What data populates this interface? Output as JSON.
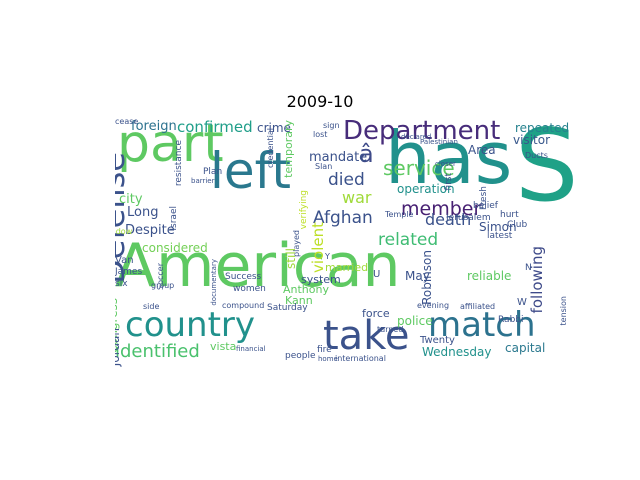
{
  "title": "2009-10",
  "words": [
    {
      "t": "American",
      "c": "#5ec962"
    },
    {
      "t": "part",
      "c": "#5ec962"
    },
    {
      "t": "has",
      "c": "#21918c"
    },
    {
      "t": "S",
      "c": "#1fa187"
    },
    {
      "t": "left",
      "c": "#2a788e"
    },
    {
      "t": "take",
      "c": "#3b528b"
    },
    {
      "t": "match",
      "c": "#2c728e"
    },
    {
      "t": "country",
      "c": "#21918c"
    },
    {
      "t": "Department",
      "c": "#472c7a"
    },
    {
      "t": "Defense",
      "c": "#3b528b"
    },
    {
      "t": "identified",
      "c": "#4ac16d"
    },
    {
      "t": "service",
      "c": "#5ec962"
    },
    {
      "t": "â",
      "c": "#3e4a89"
    },
    {
      "t": "Afghan",
      "c": "#3b528b"
    },
    {
      "t": "died",
      "c": "#3b528b"
    },
    {
      "t": "related",
      "c": "#3fbc73"
    },
    {
      "t": "member",
      "c": "#482173"
    },
    {
      "t": "confirmed",
      "c": "#1f9e89"
    },
    {
      "t": "war",
      "c": "#a0da39"
    },
    {
      "t": "crime",
      "c": "#3b528b"
    },
    {
      "t": "foreign",
      "c": "#2c728e"
    },
    {
      "t": "temporary",
      "c": "#5ec962"
    },
    {
      "t": "death",
      "c": "#3b528b"
    },
    {
      "t": "operation",
      "c": "#21918c"
    },
    {
      "t": "visitor",
      "c": "#38588c"
    },
    {
      "t": "repeated",
      "c": "#26828e"
    },
    {
      "t": "Area",
      "c": "#3b528b"
    },
    {
      "t": "following",
      "c": "#3e4a89"
    },
    {
      "t": "Long",
      "c": "#3b528b"
    },
    {
      "t": "considered",
      "c": "#73d056"
    },
    {
      "t": "Despite",
      "c": "#3b528b"
    },
    {
      "t": "city",
      "c": "#5ec962"
    },
    {
      "t": "mandate",
      "c": "#3b528b"
    },
    {
      "t": "reliable",
      "c": "#5ec962"
    },
    {
      "t": "violent",
      "c": "#bddf26"
    },
    {
      "t": "married",
      "c": "#a0da39"
    },
    {
      "t": "system",
      "c": "#3b528b"
    },
    {
      "t": "Anthony",
      "c": "#5ec962"
    },
    {
      "t": "Kann",
      "c": "#5ec962"
    },
    {
      "t": "police",
      "c": "#5ec962"
    },
    {
      "t": "force",
      "c": "#3b528b"
    },
    {
      "t": "Wednesday",
      "c": "#21918c"
    },
    {
      "t": "capital",
      "c": "#2a788e"
    },
    {
      "t": "Robinson",
      "c": "#3b528b"
    },
    {
      "t": "Simon",
      "c": "#3b528b"
    },
    {
      "t": "Congress",
      "c": "#5ec962"
    },
    {
      "t": "Jordan",
      "c": "#3b528b"
    },
    {
      "t": "vista",
      "c": "#5ec962"
    },
    {
      "t": "Twenty",
      "c": "#3b528b"
    },
    {
      "t": "international",
      "c": "#3b528b"
    },
    {
      "t": "Saturday",
      "c": "#3b528b"
    },
    {
      "t": "women",
      "c": "#3b528b"
    },
    {
      "t": "May",
      "c": "#3b528b"
    },
    {
      "t": "Van",
      "c": "#3b528b"
    },
    {
      "t": "James",
      "c": "#3b528b"
    },
    {
      "t": "six",
      "c": "#3b528b"
    },
    {
      "t": "Meadow",
      "c": "#a0da39"
    },
    {
      "t": "Israel",
      "c": "#3b528b"
    },
    {
      "t": "Plan",
      "c": "#3b528b"
    },
    {
      "t": "Success",
      "c": "#3b528b"
    },
    {
      "t": "compound",
      "c": "#3b528b"
    },
    {
      "t": "Jerusalem",
      "c": "#3b528b"
    },
    {
      "t": "belief",
      "c": "#3b528b"
    },
    {
      "t": "hurt",
      "c": "#3b528b"
    },
    {
      "t": "Club",
      "c": "#3b528b"
    },
    {
      "t": "latest",
      "c": "#3b528b"
    },
    {
      "t": "Rabbi",
      "c": "#3b528b"
    },
    {
      "t": "tension",
      "c": "#3b528b"
    },
    {
      "t": "evening",
      "c": "#3b528b"
    },
    {
      "t": "affiliated",
      "c": "#3b528b"
    },
    {
      "t": "Temple",
      "c": "#3b528b"
    },
    {
      "t": "resistance",
      "c": "#3b528b"
    },
    {
      "t": "credential",
      "c": "#3b528b"
    },
    {
      "t": "verifying",
      "c": "#bddf26"
    },
    {
      "t": "played",
      "c": "#3b528b"
    },
    {
      "t": "still",
      "c": "#a0da39"
    },
    {
      "t": "fire",
      "c": "#3b528b"
    },
    {
      "t": "people",
      "c": "#3b528b"
    },
    {
      "t": "home",
      "c": "#3b528b"
    },
    {
      "t": "group",
      "c": "#3b528b"
    },
    {
      "t": "side",
      "c": "#3b528b"
    },
    {
      "t": "Soccer",
      "c": "#3b528b"
    },
    {
      "t": "financial",
      "c": "#3b528b"
    },
    {
      "t": "Palestinian",
      "c": "#3b528b"
    },
    {
      "t": "Ducts",
      "c": "#3b528b"
    },
    {
      "t": "declared",
      "c": "#3b528b"
    },
    {
      "t": "lost",
      "c": "#3b528b"
    },
    {
      "t": "sign",
      "c": "#3b528b"
    },
    {
      "t": "cease",
      "c": "#3b528b"
    },
    {
      "t": "barrier",
      "c": "#3b528b"
    },
    {
      "t": "first",
      "c": "#3b528b"
    },
    {
      "t": "closer",
      "c": "#3b528b"
    },
    {
      "t": "turned",
      "c": "#3b528b"
    },
    {
      "t": "documentary",
      "c": "#3b528b"
    },
    {
      "t": "Fresh",
      "c": "#3b528b"
    },
    {
      "t": "Slan",
      "c": "#3b528b"
    },
    {
      "t": "Y",
      "c": "#3b528b"
    },
    {
      "t": "N",
      "c": "#3b528b"
    },
    {
      "t": "U",
      "c": "#3b528b"
    },
    {
      "t": "W",
      "c": "#3b528b"
    }
  ]
}
